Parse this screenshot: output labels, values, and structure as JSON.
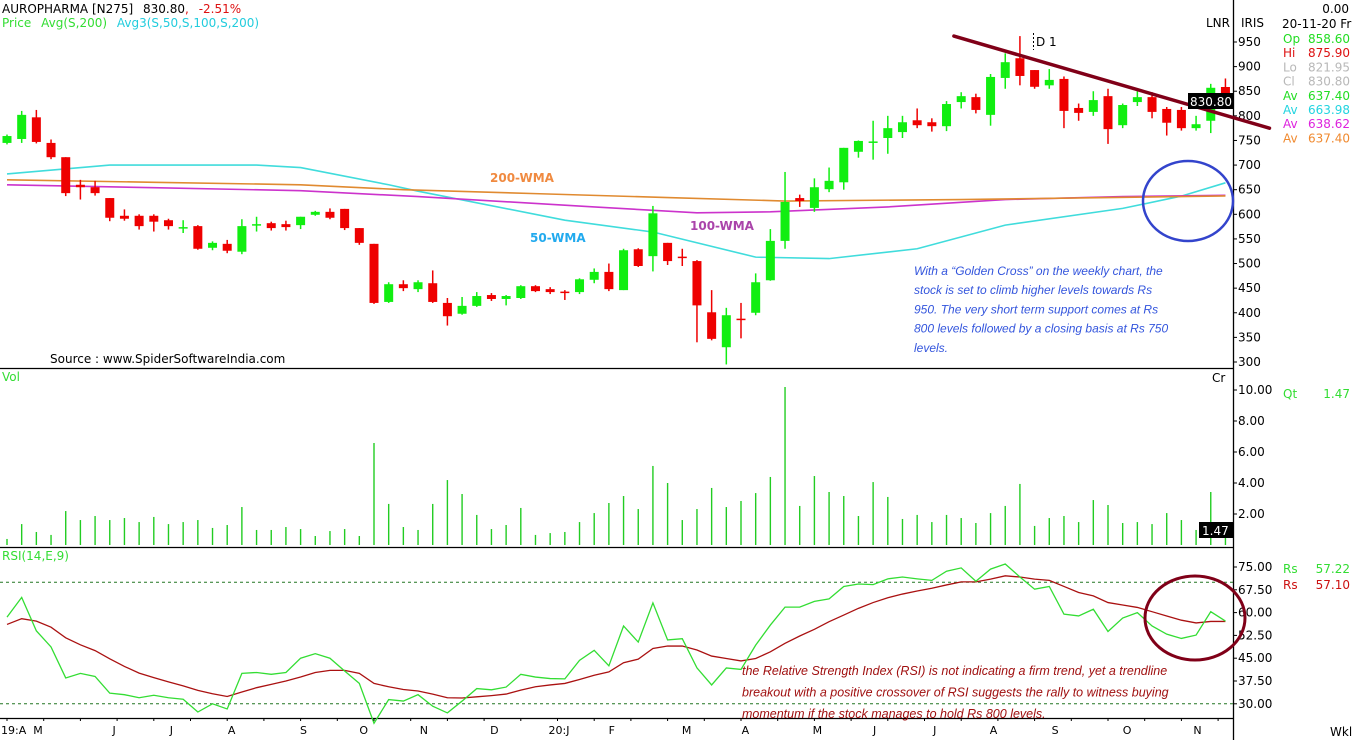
{
  "header": {
    "symbol": "AUROPHARMA [N275]",
    "price": "830.80",
    "comma": ",",
    "change": "-2.51%",
    "legend_price": "Price",
    "legend_avg": "Avg(S,200)",
    "legend_avg3": "Avg3(S,50,S,100,S,200)"
  },
  "top_right": {
    "lnr": "LNR",
    "iris": "IRIS",
    "value": "0.00",
    "date": "20-11-20 Fri"
  },
  "info_rows": [
    {
      "label": "Op",
      "value": "858.60",
      "color": "#22dd22"
    },
    {
      "label": "Hi",
      "value": "875.90",
      "color": "#dd1111"
    },
    {
      "label": "Lo",
      "value": "821.95",
      "color": "#b8b8b8"
    },
    {
      "label": "Cl",
      "value": "830.80",
      "color": "#b8b8b8"
    },
    {
      "label": "Av",
      "value": "637.40",
      "color": "#22dd22"
    },
    {
      "label": "Av",
      "value": "663.98",
      "color": "#22d4e0"
    },
    {
      "label": "Av",
      "value": "638.62",
      "color": "#dd22dd"
    },
    {
      "label": "Av",
      "value": "637.40",
      "color": "#f08a30"
    }
  ],
  "price_box": "830.80",
  "volume_panel": {
    "label": "Vol",
    "unit": "Cr",
    "qt_label": "Qt",
    "qt_value": "1.47",
    "box": "1.47"
  },
  "rsi_panel": {
    "label": "RSI(14,E,9)",
    "rs1_label": "Rs",
    "rs1_value": "57.22",
    "rs2_label": "Rs",
    "rs2_value": "57.10"
  },
  "annotations": {
    "wma200": "200-WMA",
    "wma50": "50-WMA",
    "wma100": "100-WMA",
    "d1": "D 1",
    "source": "Source : www.SpiderSoftwareIndia.com",
    "golden_cross_note": [
      "With a “Golden Cross” on the weekly chart, the",
      "stock is set to climb higher levels towards Rs",
      "950. The very short term support comes at Rs",
      "800 levels followed by a closing basis at Rs 750",
      "levels."
    ],
    "rsi_note": [
      "the Relative Strength Index (RSI) is not indicating a firm trend, yet a trendline",
      "breakout with a positive crossover of RSI suggests the rally to witness buying",
      "momentum if the stock manages to hold Rs 800 levels."
    ],
    "period": "Wkl"
  },
  "colors": {
    "up": "#11ee11",
    "down": "#ee0000",
    "wma50": "#40dcdc",
    "wma100": "#cc33cc",
    "wma200": "#e08a30",
    "trendline": "#800018",
    "circle_price": "#3344cc",
    "circle_rsi": "#800018",
    "rsi": "#33dd33",
    "rsi_signal": "#aa1111",
    "volume": "#22cc22"
  },
  "chart_data": {
    "type": "candlestick",
    "title": "AUROPHARMA weekly",
    "x_labels": [
      {
        "i": 0,
        "label": "19:A"
      },
      {
        "i": 1.5,
        "label": "M"
      },
      {
        "i": 7.3,
        "label": "J"
      },
      {
        "i": 11.2,
        "label": "J"
      },
      {
        "i": 15.3,
        "label": "A"
      },
      {
        "i": 20.2,
        "label": "S"
      },
      {
        "i": 24.3,
        "label": "O"
      },
      {
        "i": 28.4,
        "label": "N"
      },
      {
        "i": 33.2,
        "label": "D"
      },
      {
        "i": 37.6,
        "label": "20:J"
      },
      {
        "i": 41.2,
        "label": "F"
      },
      {
        "i": 46.3,
        "label": "M"
      },
      {
        "i": 50.3,
        "label": "A"
      },
      {
        "i": 55.2,
        "label": "M"
      },
      {
        "i": 59.1,
        "label": "J"
      },
      {
        "i": 63.2,
        "label": "J"
      },
      {
        "i": 67.2,
        "label": "A"
      },
      {
        "i": 71.4,
        "label": "S"
      },
      {
        "i": 76.3,
        "label": "O"
      },
      {
        "i": 81.1,
        "label": "N"
      }
    ],
    "price_axis": {
      "ticks": [
        950,
        900,
        850,
        800,
        750,
        700,
        650,
        600,
        550,
        500,
        450,
        400,
        350,
        300
      ],
      "range": [
        290,
        975
      ]
    },
    "ohlc": [
      [
        745,
        762,
        742,
        759
      ],
      [
        753,
        810,
        745,
        802
      ],
      [
        797,
        812,
        744,
        747
      ],
      [
        745,
        752,
        712,
        716
      ],
      [
        716,
        716,
        637,
        643
      ],
      [
        660,
        670,
        630,
        655
      ],
      [
        655,
        668,
        638,
        643
      ],
      [
        633,
        633,
        586,
        593
      ],
      [
        597,
        610,
        587,
        591
      ],
      [
        597,
        600,
        569,
        576
      ],
      [
        597,
        600,
        565,
        585
      ],
      [
        588,
        591,
        569,
        576
      ],
      [
        571,
        588,
        562,
        574
      ],
      [
        576,
        578,
        528,
        530
      ],
      [
        532,
        545,
        527,
        542
      ],
      [
        540,
        548,
        521,
        526
      ],
      [
        524,
        590,
        519,
        576
      ],
      [
        578,
        595,
        565,
        580
      ],
      [
        582,
        585,
        567,
        572
      ],
      [
        580,
        587,
        567,
        574
      ],
      [
        578,
        595,
        570,
        595
      ],
      [
        599,
        607,
        597,
        605
      ],
      [
        605,
        612,
        590,
        593
      ],
      [
        611,
        611,
        568,
        572
      ],
      [
        572,
        572,
        538,
        542
      ],
      [
        540,
        540,
        418,
        420
      ],
      [
        422,
        462,
        420,
        458
      ],
      [
        458,
        466,
        444,
        450
      ],
      [
        448,
        466,
        442,
        462
      ],
      [
        460,
        486,
        420,
        422
      ],
      [
        420,
        430,
        374,
        393
      ],
      [
        398,
        432,
        396,
        414
      ],
      [
        414,
        442,
        412,
        434
      ],
      [
        436,
        440,
        424,
        428
      ],
      [
        428,
        436,
        415,
        434
      ],
      [
        430,
        456,
        428,
        454
      ],
      [
        454,
        456,
        442,
        444
      ],
      [
        448,
        452,
        438,
        442
      ],
      [
        443,
        446,
        426,
        441
      ],
      [
        442,
        470,
        438,
        468
      ],
      [
        467,
        490,
        460,
        483
      ],
      [
        483,
        500,
        444,
        448
      ],
      [
        446,
        530,
        446,
        527
      ],
      [
        529,
        531,
        493,
        495
      ],
      [
        515,
        617,
        484,
        602
      ],
      [
        542,
        542,
        497,
        505
      ],
      [
        514,
        530,
        495,
        511
      ],
      [
        505,
        507,
        340,
        415
      ],
      [
        401,
        446,
        344,
        347
      ],
      [
        330,
        410,
        295,
        395
      ],
      [
        388,
        420,
        348,
        386
      ],
      [
        400,
        480,
        395,
        462
      ],
      [
        466,
        570,
        465,
        546
      ],
      [
        546,
        686,
        530,
        625
      ],
      [
        633,
        640,
        615,
        627
      ],
      [
        613,
        673,
        605,
        655
      ],
      [
        651,
        695,
        645,
        668
      ],
      [
        665,
        735,
        650,
        735
      ],
      [
        727,
        750,
        715,
        749
      ],
      [
        746,
        790,
        711,
        748
      ],
      [
        755,
        800,
        723,
        775
      ],
      [
        767,
        800,
        755,
        787
      ],
      [
        791,
        815,
        775,
        781
      ],
      [
        787,
        795,
        768,
        779
      ],
      [
        779,
        830,
        769,
        824
      ],
      [
        828,
        848,
        815,
        840
      ],
      [
        838,
        845,
        805,
        812
      ],
      [
        802,
        885,
        780,
        879
      ],
      [
        877,
        927,
        855,
        909
      ],
      [
        917,
        962,
        862,
        881
      ],
      [
        893,
        893,
        855,
        859
      ],
      [
        862,
        895,
        855,
        873
      ],
      [
        875,
        880,
        775,
        810
      ],
      [
        816,
        825,
        790,
        806
      ],
      [
        808,
        850,
        800,
        832
      ],
      [
        840,
        855,
        743,
        773
      ],
      [
        781,
        825,
        775,
        822
      ],
      [
        828,
        850,
        820,
        838
      ],
      [
        838,
        848,
        795,
        808
      ],
      [
        814,
        818,
        760,
        786
      ],
      [
        812,
        818,
        770,
        775
      ],
      [
        775,
        800,
        770,
        783
      ],
      [
        790,
        865,
        765,
        857
      ],
      [
        858.6,
        875.9,
        821.95,
        830.8
      ]
    ],
    "moving_averages": [
      {
        "name": "50-WMA",
        "points": [
          [
            0,
            682
          ],
          [
            7,
            700
          ],
          [
            17,
            700
          ],
          [
            20,
            695
          ],
          [
            26,
            660
          ],
          [
            28,
            647
          ],
          [
            38,
            588
          ],
          [
            44,
            564
          ],
          [
            51,
            513
          ],
          [
            56,
            510
          ],
          [
            62,
            530
          ],
          [
            68,
            578
          ],
          [
            76,
            612
          ],
          [
            80,
            637
          ],
          [
            83,
            663.98
          ]
        ]
      },
      {
        "name": "100-WMA",
        "points": [
          [
            0,
            660
          ],
          [
            10,
            654
          ],
          [
            20,
            648
          ],
          [
            28,
            636
          ],
          [
            40,
            615
          ],
          [
            47,
            603
          ],
          [
            52,
            605
          ],
          [
            60,
            615
          ],
          [
            68,
            630
          ],
          [
            76,
            636
          ],
          [
            83,
            638.62
          ]
        ]
      },
      {
        "name": "200-WMA",
        "points": [
          [
            0,
            670
          ],
          [
            10,
            665
          ],
          [
            20,
            660
          ],
          [
            27,
            650
          ],
          [
            36,
            642
          ],
          [
            45,
            634
          ],
          [
            53,
            627
          ],
          [
            65,
            630
          ],
          [
            75,
            634
          ],
          [
            83,
            637.4
          ]
        ]
      }
    ],
    "trendline": {
      "from": [
        64.5,
        962
      ],
      "to": [
        86,
        775
      ]
    },
    "volume": {
      "unit": "Cr",
      "ticks": [
        10,
        8,
        6,
        4,
        2
      ],
      "range": [
        0,
        11.5
      ],
      "values": [
        0.39,
        1.35,
        0.84,
        0.65,
        2.19,
        1.61,
        1.87,
        1.61,
        1.74,
        1.48,
        1.81,
        1.35,
        1.48,
        1.61,
        1.1,
        1.29,
        2.45,
        0.97,
        0.97,
        1.16,
        1.03,
        0.58,
        0.9,
        1.03,
        0.58,
        6.58,
        2.65,
        1.16,
        0.97,
        2.65,
        4.19,
        3.29,
        1.94,
        1.03,
        1.29,
        2.39,
        0.65,
        0.77,
        0.84,
        1.48,
        2.06,
        2.71,
        3.16,
        2.32,
        5.1,
        4.0,
        1.61,
        2.32,
        3.68,
        2.45,
        2.84,
        3.35,
        4.39,
        10.19,
        2.52,
        4.45,
        3.42,
        3.16,
        1.87,
        4.06,
        3.1,
        1.68,
        1.94,
        1.48,
        1.94,
        1.74,
        1.42,
        2.06,
        2.52,
        3.94,
        1.23,
        1.74,
        1.87,
        1.48,
        2.9,
        2.58,
        1.42,
        1.48,
        1.35,
        2.06,
        1.61,
        0.97,
        3.42,
        1.47
      ]
    },
    "rsi": {
      "ticks": [
        75,
        67.5,
        60,
        52.5,
        45,
        37.5,
        30
      ],
      "levels": [
        70,
        30
      ],
      "range": [
        20,
        80
      ],
      "rsi": [
        58.5,
        65,
        54,
        48.7,
        38.5,
        40,
        39,
        33.5,
        33,
        32,
        32.8,
        32,
        31.5,
        27.3,
        30,
        28.3,
        40,
        40.3,
        39.7,
        40.3,
        45,
        46.5,
        45,
        40.8,
        36.7,
        23.6,
        31.4,
        30.9,
        33,
        29.2,
        27,
        30.9,
        35,
        34.6,
        35.5,
        39.7,
        38.8,
        38.3,
        38.2,
        44.3,
        47.6,
        42.5,
        55.6,
        50.3,
        63.2,
        51,
        51.4,
        41.8,
        36.2,
        41.8,
        41.3,
        49.3,
        55.9,
        61.8,
        61.8,
        63.7,
        64.5,
        68.6,
        69.4,
        69.2,
        71.1,
        71.7,
        71.1,
        70.6,
        73.6,
        74.7,
        70.3,
        74.3,
        76,
        71.7,
        67.7,
        68.6,
        59.5,
        58.9,
        61.1,
        53.8,
        58.2,
        60,
        55.6,
        52.9,
        51.5,
        52.6,
        60.3,
        57.22
      ],
      "signal": [
        56.1,
        58,
        57.2,
        55.2,
        51.7,
        49.4,
        47.5,
        44.8,
        42.3,
        40.1,
        38.6,
        37.2,
        35.9,
        34.4,
        33.3,
        32.4,
        33.9,
        35.3,
        36.4,
        37.5,
        38.8,
        40.3,
        41,
        41,
        40,
        36.7,
        35.6,
        34.7,
        34.2,
        33.2,
        32,
        31.9,
        32.3,
        32.7,
        33.2,
        34.5,
        35.6,
        36.2,
        36.7,
        38,
        39.4,
        40.5,
        43.5,
        44.7,
        48.2,
        49,
        49,
        47.7,
        45.7,
        44.9,
        44.1,
        44.9,
        47.1,
        49.9,
        52.3,
        54.5,
        57,
        59.2,
        61.4,
        63.3,
        64.9,
        66.1,
        67.1,
        68,
        69.1,
        70.1,
        70.1,
        71,
        72.1,
        71.7,
        71,
        70.6,
        68.6,
        66.6,
        65.5,
        63.3,
        62.5,
        61.7,
        60.3,
        58.9,
        57.5,
        56.6,
        57.1,
        57.1
      ]
    }
  }
}
